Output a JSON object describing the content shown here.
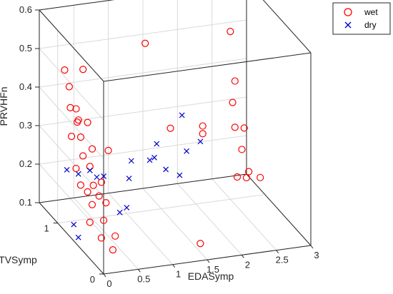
{
  "chart_data": {
    "type": "scatter",
    "title": "",
    "xlabel": "EDASymp",
    "ylabel": "TVSymp",
    "zlabel": "PRVHFn",
    "xlim": [
      0,
      3
    ],
    "ylim": [
      0,
      1.4
    ],
    "zlim": [
      0.1,
      0.6
    ],
    "xticks": [
      "0",
      "0.5",
      "1",
      "1.5",
      "2",
      "2.5",
      "3"
    ],
    "yticks": [
      "0",
      "1"
    ],
    "zticks": [
      "0.1",
      "0.2",
      "0.3",
      "0.4",
      "0.5",
      "0.6"
    ],
    "grid": true,
    "legend_position": "top-right",
    "series": [
      {
        "name": "wet",
        "marker": "circle",
        "color": "#ff0000",
        "points": [
          [
            0.3,
            1.3,
            0.45
          ],
          [
            0.3,
            1.2,
            0.42
          ],
          [
            0.25,
            1.1,
            0.38
          ],
          [
            0.4,
            1.2,
            0.36
          ],
          [
            0.3,
            1.0,
            0.36
          ],
          [
            0.2,
            1.0,
            0.32
          ],
          [
            0.4,
            1.1,
            0.3
          ],
          [
            0.5,
            1.0,
            0.28
          ],
          [
            0.3,
            0.9,
            0.28
          ],
          [
            0.2,
            0.9,
            0.25
          ],
          [
            0.4,
            0.9,
            0.25
          ],
          [
            0.5,
            0.8,
            0.22
          ],
          [
            0.2,
            0.8,
            0.22
          ],
          [
            0.3,
            0.8,
            0.2
          ],
          [
            0.4,
            0.7,
            0.2
          ],
          [
            0.5,
            0.7,
            0.18
          ],
          [
            0.3,
            0.7,
            0.18
          ],
          [
            0.2,
            0.6,
            0.15
          ],
          [
            0.4,
            0.6,
            0.15
          ],
          [
            0.3,
            0.5,
            0.12
          ],
          [
            0.5,
            0.5,
            0.12
          ],
          [
            0.4,
            0.4,
            0.1
          ],
          [
            0.3,
            0.8,
            0.38
          ],
          [
            0.6,
            0.8,
            0.3
          ],
          [
            0.5,
            1.2,
            0.46
          ],
          [
            0.35,
            1.1,
            0.34
          ],
          [
            0.45,
            0.9,
            0.2
          ],
          [
            1.2,
            0.9,
            0.55
          ],
          [
            1.3,
            0.5,
            0.38
          ],
          [
            1.6,
            0.3,
            0.1
          ],
          [
            2.3,
            0.7,
            0.58
          ],
          [
            2.5,
            0.9,
            0.42
          ],
          [
            2.4,
            0.8,
            0.38
          ],
          [
            2.5,
            0.9,
            0.3
          ],
          [
            2.7,
            1.0,
            0.28
          ],
          [
            2.6,
            0.9,
            0.24
          ],
          [
            2.4,
            0.7,
            0.2
          ],
          [
            2.6,
            0.8,
            0.18
          ],
          [
            2.7,
            0.9,
            0.18
          ],
          [
            2.1,
            1.0,
            0.3
          ],
          [
            2.1,
            1.0,
            0.28
          ],
          [
            2.6,
            0.5,
            0.22
          ]
        ]
      },
      {
        "name": "dry",
        "marker": "x",
        "color": "#0000cc",
        "points": [
          [
            0.2,
            1.1,
            0.22
          ],
          [
            0.3,
            1.0,
            0.22
          ],
          [
            0.4,
            0.9,
            0.24
          ],
          [
            0.5,
            0.9,
            0.22
          ],
          [
            0.6,
            0.9,
            0.22
          ],
          [
            0.1,
            0.8,
            0.12
          ],
          [
            0.1,
            0.7,
            0.1
          ],
          [
            1.0,
            0.9,
            0.25
          ],
          [
            0.9,
            0.8,
            0.22
          ],
          [
            0.7,
            0.7,
            0.15
          ],
          [
            0.8,
            0.7,
            0.16
          ],
          [
            1.2,
            0.8,
            0.26
          ],
          [
            1.3,
            0.8,
            0.3
          ],
          [
            1.2,
            0.7,
            0.28
          ],
          [
            1.3,
            0.6,
            0.26
          ],
          [
            1.6,
            0.6,
            0.3
          ],
          [
            1.8,
            0.6,
            0.32
          ],
          [
            1.6,
            0.7,
            0.38
          ],
          [
            1.5,
            0.6,
            0.24
          ]
        ]
      }
    ]
  }
}
